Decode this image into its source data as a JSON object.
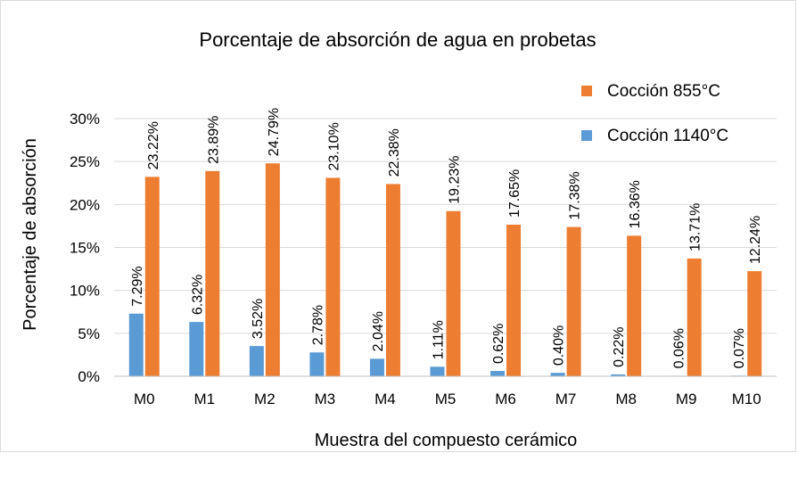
{
  "chart_data": {
    "type": "bar",
    "title": "Porcentaje de absorción de agua en probetas",
    "xlabel": "Muestra del compuesto cerámico",
    "ylabel": "Porcentaje de absorción",
    "ylim": [
      0,
      30
    ],
    "yticks": [
      {
        "value": 0,
        "label": "0%"
      },
      {
        "value": 5,
        "label": "5%"
      },
      {
        "value": 10,
        "label": "10%"
      },
      {
        "value": 15,
        "label": "15%"
      },
      {
        "value": 20,
        "label": "20%"
      },
      {
        "value": 25,
        "label": "25%"
      },
      {
        "value": 30,
        "label": "30%"
      }
    ],
    "categories": [
      "M0",
      "M1",
      "M2",
      "M3",
      "M4",
      "M5",
      "M6",
      "M7",
      "M8",
      "M9",
      "M10"
    ],
    "series": [
      {
        "name": "Cocción 1140°C",
        "color": "#5b9bd5",
        "values": [
          7.29,
          6.32,
          3.52,
          2.78,
          2.04,
          1.11,
          0.62,
          0.4,
          0.22,
          0.06,
          0.07
        ],
        "labels": [
          "7.29%",
          "6.32%",
          "3.52%",
          "2.78%",
          "2.04%",
          "1.11%",
          "0.62%",
          "0.40%",
          "0.22%",
          "0.06%",
          "0.07%"
        ]
      },
      {
        "name": "Cocción 855°C",
        "color": "#ed7d31",
        "values": [
          23.22,
          23.89,
          24.79,
          23.1,
          22.38,
          19.23,
          17.65,
          17.38,
          16.36,
          13.71,
          12.24
        ],
        "labels": [
          "23.22%",
          "23.89%",
          "24.79%",
          "23.10%",
          "22.38%",
          "19.23%",
          "17.65%",
          "17.38%",
          "16.36%",
          "13.71%",
          "12.24%"
        ]
      }
    ],
    "legend": {
      "position": "top-right",
      "order": [
        "Cocción 855°C",
        "Cocción 1140°C"
      ]
    },
    "grid": true
  }
}
